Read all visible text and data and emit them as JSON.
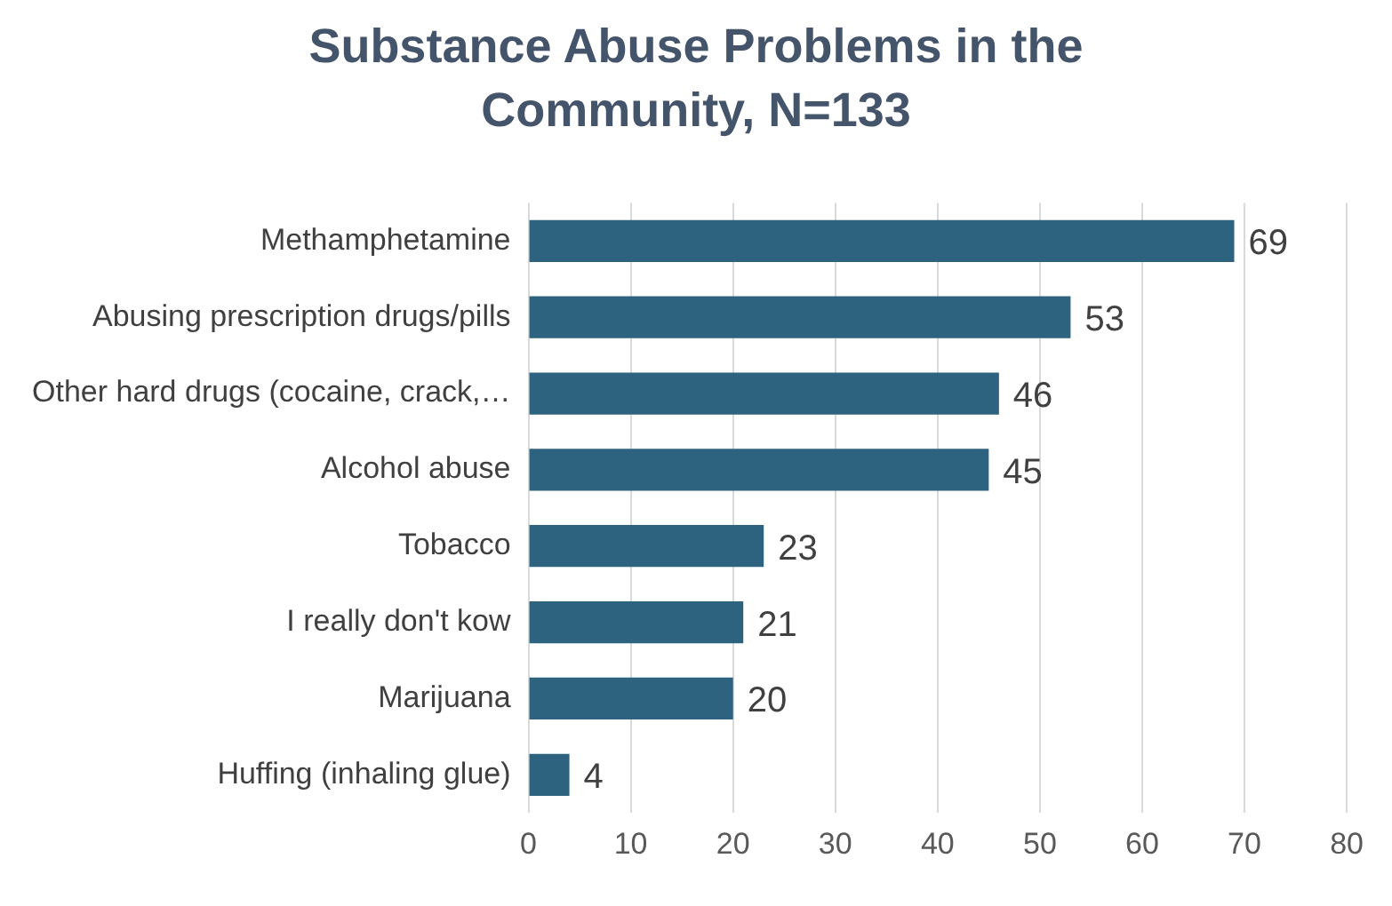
{
  "chart_data": {
    "type": "bar",
    "orientation": "horizontal",
    "title": "Substance Abuse Problems in the Community, N=133",
    "categories": [
      "Methamphetamine",
      "Abusing prescription drugs/pills",
      "Other hard drugs (cocaine, crack,…",
      "Alcohol abuse",
      "Tobacco",
      "I really don't kow",
      "Marijuana",
      "Huffing (inhaling glue)"
    ],
    "values": [
      69,
      53,
      46,
      45,
      23,
      21,
      20,
      4
    ],
    "color": "#2e6380",
    "xlim": [
      0,
      80
    ],
    "xticks": [
      0,
      10,
      20,
      30,
      40,
      50,
      60,
      70,
      80
    ],
    "grid": "x",
    "data_labels": true
  }
}
